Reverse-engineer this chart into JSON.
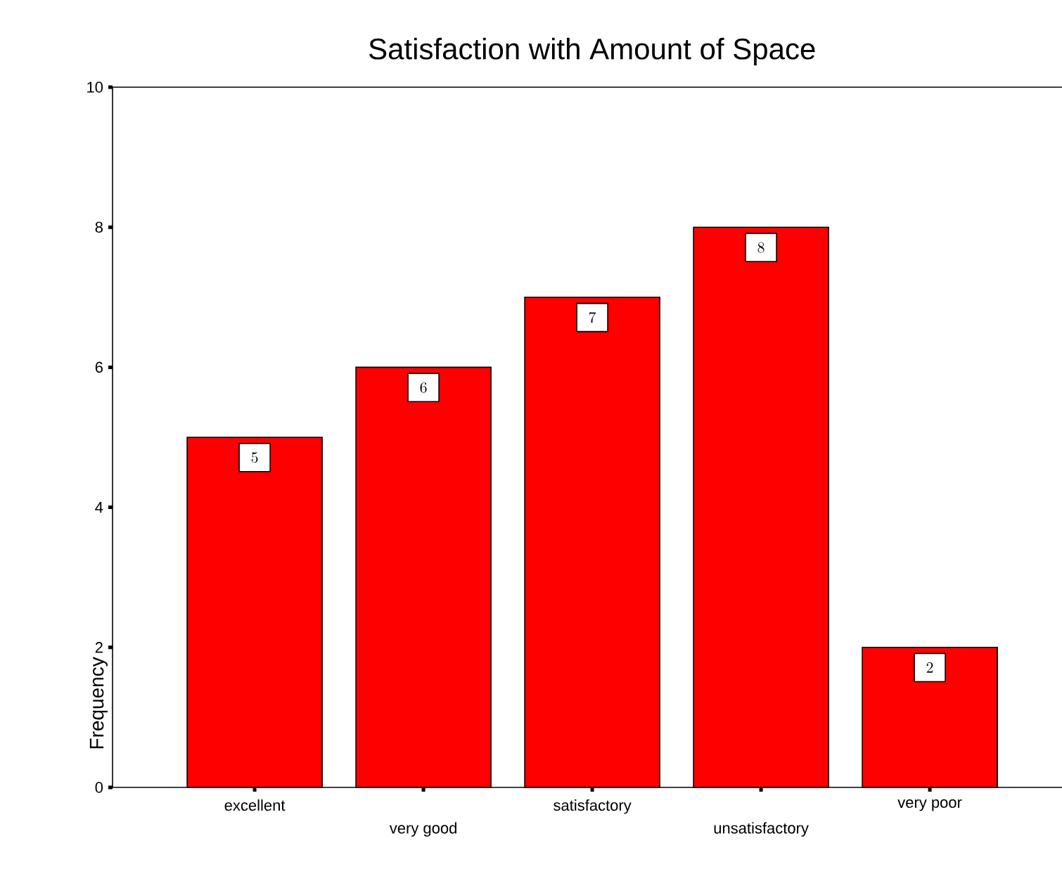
{
  "chart_data": {
    "type": "bar",
    "title": "Satisfaction with Amount of Space",
    "ylabel": "Frequency",
    "categories": [
      "excellent",
      "very good",
      "satisfactory",
      "unsatisfactory",
      "very poor"
    ],
    "values": [
      5,
      6,
      7,
      8,
      2
    ],
    "color": "#ff0000",
    "ylim": [
      0,
      10
    ],
    "yticks": [
      0,
      2,
      4,
      6,
      8,
      10
    ],
    "data_labels": true
  }
}
